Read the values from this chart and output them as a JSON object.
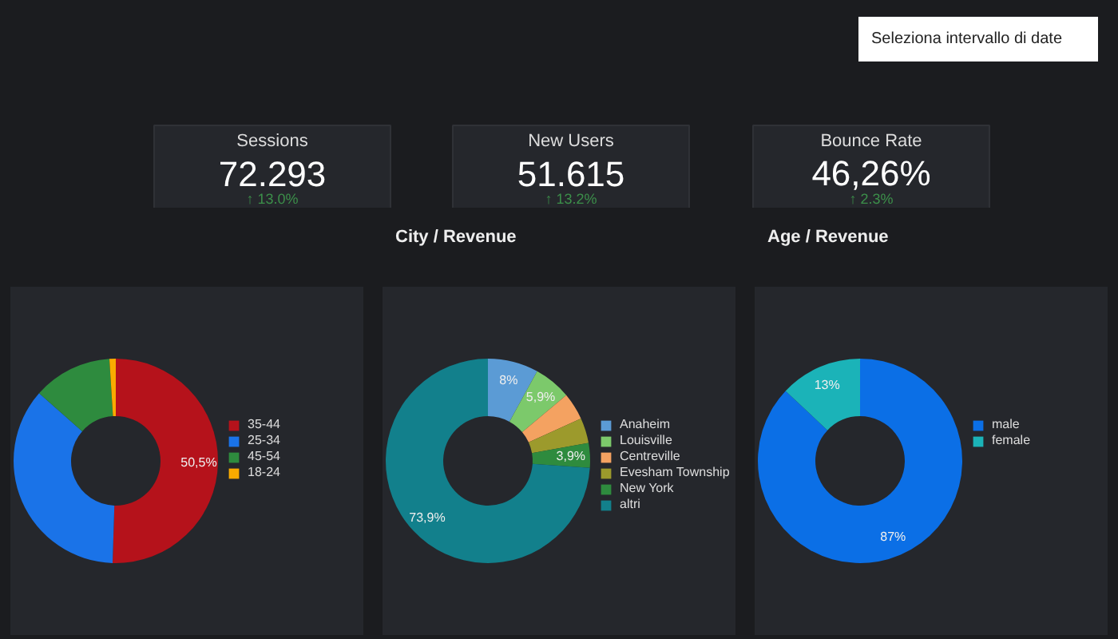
{
  "chart_data": [
    {
      "type": "other",
      "annotations": [
        "Seleziona intervallo di date",
        "Sessions",
        "72.293",
        "↑ 13.0%",
        "New Users",
        "51.615",
        "↑ 13.2%",
        "Bounce Rate",
        "46,26%",
        "↑ 2.3%"
      ]
    },
    {
      "type": "donut",
      "categories": [
        "35-44",
        "25-34",
        "45-54",
        "18-24"
      ],
      "values": [
        50.5,
        36,
        12.5,
        1
      ],
      "colors": [
        "#b5121b",
        "#1a73e8",
        "#2e8b3e",
        "#f9ab00"
      ],
      "value_labels": [
        "50,5%",
        null,
        null,
        null
      ],
      "legend": "right"
    },
    {
      "type": "donut",
      "title": "City / Revenue",
      "categories": [
        "Anaheim",
        "Louisville",
        "Centreville",
        "Evesham Township",
        "New York",
        "altri"
      ],
      "values": [
        8,
        5.9,
        4.3,
        4.0,
        3.9,
        73.9
      ],
      "colors": [
        "#5b9bd5",
        "#7cc96b",
        "#f4a261",
        "#9c9a2c",
        "#2e8b3e",
        "#12808c"
      ],
      "value_labels": [
        "8%",
        "5,9%",
        null,
        null,
        "3,9%",
        "73,9%"
      ],
      "legend": "right"
    },
    {
      "type": "donut",
      "title": "Age / Revenue",
      "categories": [
        "male",
        "female"
      ],
      "values": [
        87,
        13
      ],
      "colors": [
        "#0b6fe6",
        "#1bb3b8"
      ],
      "value_labels": [
        "87%",
        "13%"
      ],
      "legend": "right"
    }
  ]
}
